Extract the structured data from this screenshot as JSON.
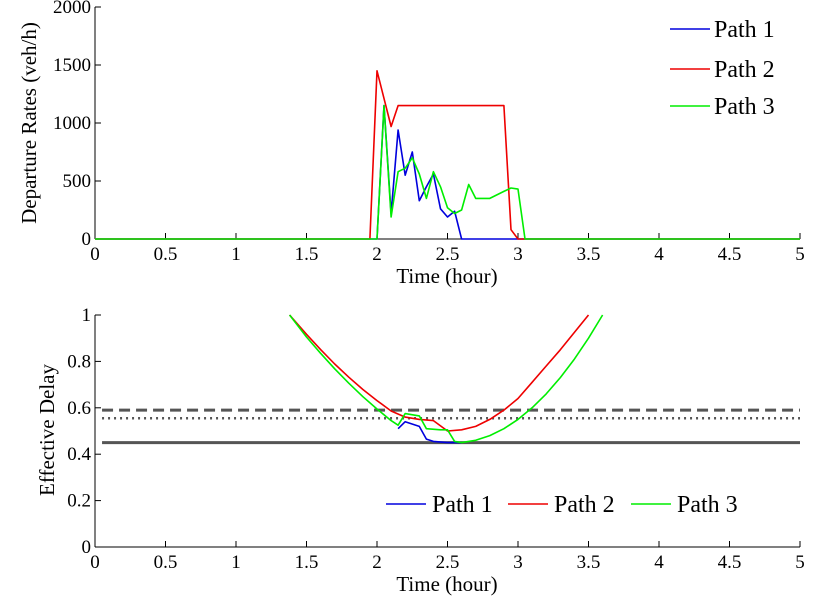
{
  "colors": {
    "path1": "#0000dd",
    "path2": "#ee0000",
    "path3": "#00ee00",
    "ref": "#555555"
  },
  "chart_data": [
    {
      "type": "line",
      "xlabel": "Time (hour)",
      "ylabel": "Departure Rates (veh/h)",
      "xlim": [
        0,
        5
      ],
      "ylim": [
        0,
        2000
      ],
      "xticks": [
        "0",
        "0.5",
        "1",
        "1.5",
        "2",
        "2.5",
        "3",
        "3.5",
        "4",
        "4.5",
        "5"
      ],
      "yticks": [
        "0",
        "500",
        "1000",
        "1500",
        "2000"
      ],
      "legend_position": "top-right",
      "series": [
        {
          "name": "Path 1",
          "color": "#0000dd",
          "x": [
            0,
            2.0,
            2.05,
            2.1,
            2.15,
            2.2,
            2.25,
            2.3,
            2.35,
            2.4,
            2.45,
            2.5,
            2.55,
            2.6,
            5
          ],
          "y": [
            0,
            0,
            1150,
            220,
            940,
            550,
            750,
            330,
            450,
            560,
            260,
            190,
            240,
            0,
            0
          ]
        },
        {
          "name": "Path 2",
          "color": "#ee0000",
          "x": [
            0,
            1.95,
            2.0,
            2.1,
            2.15,
            2.9,
            2.95,
            3.0,
            3.02,
            5
          ],
          "y": [
            0,
            0,
            1450,
            970,
            1150,
            1150,
            80,
            0,
            0,
            0
          ]
        },
        {
          "name": "Path 3",
          "color": "#00ee00",
          "x": [
            0,
            2.0,
            2.05,
            2.1,
            2.15,
            2.2,
            2.25,
            2.3,
            2.35,
            2.4,
            2.45,
            2.5,
            2.55,
            2.6,
            2.65,
            2.7,
            2.8,
            2.9,
            2.95,
            3.0,
            3.05,
            5
          ],
          "y": [
            0,
            0,
            1150,
            190,
            580,
            610,
            700,
            560,
            350,
            580,
            450,
            270,
            220,
            250,
            470,
            350,
            350,
            410,
            440,
            430,
            0,
            0
          ]
        }
      ]
    },
    {
      "type": "line",
      "xlabel": "Time (hour)",
      "ylabel": "Effective Delay",
      "xlim": [
        0,
        5
      ],
      "ylim": [
        0,
        1
      ],
      "xticks": [
        "0",
        "0.5",
        "1",
        "1.5",
        "2",
        "2.5",
        "3",
        "3.5",
        "4",
        "4.5",
        "5"
      ],
      "yticks": [
        "0",
        "0.2",
        "0.4",
        "0.6",
        "0.8",
        "1"
      ],
      "legend_position": "bottom-right",
      "reference_lines": [
        {
          "style": "solid",
          "y": 0.45,
          "x": [
            0.05,
            5
          ]
        },
        {
          "style": "dashed",
          "y": 0.59,
          "x": [
            0.05,
            5
          ]
        },
        {
          "style": "dotted",
          "y": 0.555,
          "x": [
            0.05,
            5
          ]
        }
      ],
      "series": [
        {
          "name": "Path 1",
          "color": "#0000dd",
          "x": [
            2.15,
            2.2,
            2.3,
            2.35,
            2.4,
            2.5,
            2.6
          ],
          "y": [
            0.51,
            0.54,
            0.52,
            0.465,
            0.455,
            0.45,
            0.45
          ]
        },
        {
          "name": "Path 2",
          "color": "#ee0000",
          "x": [
            1.38,
            1.5,
            1.6,
            1.7,
            1.8,
            1.9,
            2.0,
            2.1,
            2.2,
            2.3,
            2.4,
            2.5,
            2.6,
            2.7,
            2.8,
            2.9,
            3.0,
            3.1,
            3.2,
            3.3,
            3.4,
            3.5
          ],
          "y": [
            1.0,
            0.917,
            0.851,
            0.789,
            0.732,
            0.679,
            0.631,
            0.586,
            0.56,
            0.55,
            0.545,
            0.5,
            0.505,
            0.52,
            0.55,
            0.59,
            0.64,
            0.71,
            0.78,
            0.85,
            0.925,
            1.0
          ]
        },
        {
          "name": "Path 3",
          "color": "#00ee00",
          "x": [
            1.38,
            1.5,
            1.6,
            1.7,
            1.8,
            1.9,
            2.0,
            2.1,
            2.15,
            2.2,
            2.3,
            2.35,
            2.45,
            2.5,
            2.55,
            2.6,
            2.7,
            2.8,
            2.9,
            3.0,
            3.1,
            3.2,
            3.3,
            3.4,
            3.5,
            3.6
          ],
          "y": [
            1.0,
            0.905,
            0.835,
            0.768,
            0.706,
            0.648,
            0.595,
            0.545,
            0.525,
            0.575,
            0.565,
            0.51,
            0.505,
            0.505,
            0.455,
            0.45,
            0.46,
            0.48,
            0.51,
            0.55,
            0.6,
            0.66,
            0.73,
            0.81,
            0.9,
            1.0
          ]
        }
      ]
    }
  ]
}
